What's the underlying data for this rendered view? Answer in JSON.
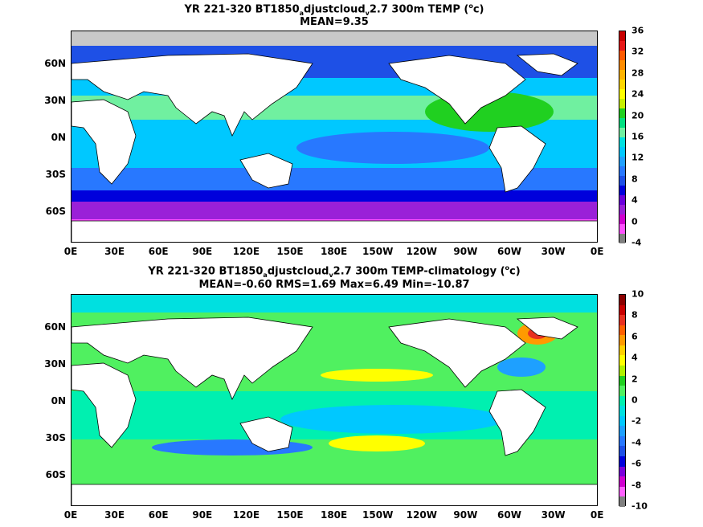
{
  "top": {
    "title_prefix": "YR 221-320 BT1850",
    "title_sub1": "a",
    "title_mid": "djustcloud",
    "title_sub2": "v",
    "title_suffix": "2.7 300m TEMP (",
    "title_sup": "o",
    "title_end": "c)",
    "stats": "MEAN=9.35",
    "colorbar_labels": [
      "36",
      "32",
      "28",
      "24",
      "20",
      "16",
      "12",
      "8",
      "4",
      "0",
      "-4"
    ],
    "colorbar_colors": [
      "#c80000",
      "#e81818",
      "#ff5a00",
      "#ff8c00",
      "#ffb400",
      "#ffd700",
      "#ffff00",
      "#c8f000",
      "#20d020",
      "#00e080",
      "#70f0a0",
      "#00e0e0",
      "#00c8ff",
      "#20a0ff",
      "#2878ff",
      "#1e50e6",
      "#0000dc",
      "#6a00dc",
      "#9a20d8",
      "#d000d0",
      "#ff50ff",
      "#808080"
    ]
  },
  "bottom": {
    "title_prefix": "YR 221-320 BT1850",
    "title_sub1": "a",
    "title_mid": "djustcloud",
    "title_sub2": "v",
    "title_suffix": "2.7 300m TEMP-climatology (",
    "title_sup": "o",
    "title_end": "c)",
    "stats": "MEAN=-0.60   RMS=1.69   Max=6.49   Min=-10.87",
    "colorbar_labels": [
      "10",
      "8",
      "6",
      "4",
      "2",
      "0",
      "-2",
      "-4",
      "-6",
      "-8",
      "-10"
    ],
    "colorbar_colors": [
      "#8b0000",
      "#c80000",
      "#e83020",
      "#ff6000",
      "#ff9a00",
      "#ffd000",
      "#ffff00",
      "#b0f000",
      "#20d020",
      "#50f060",
      "#00f0b0",
      "#00e0e0",
      "#00c8ff",
      "#1ea0ff",
      "#2878ff",
      "#1e50e6",
      "#0000dc",
      "#7a00dc",
      "#d000d0",
      "#ff60ff",
      "#808080"
    ]
  },
  "lat_labels": [
    "60N",
    "30N",
    "0N",
    "30S",
    "60S"
  ],
  "lon_labels": [
    "0E",
    "30E",
    "60E",
    "90E",
    "120E",
    "150E",
    "180E",
    "150W",
    "120W",
    "90W",
    "60W",
    "30W",
    "0E"
  ]
}
